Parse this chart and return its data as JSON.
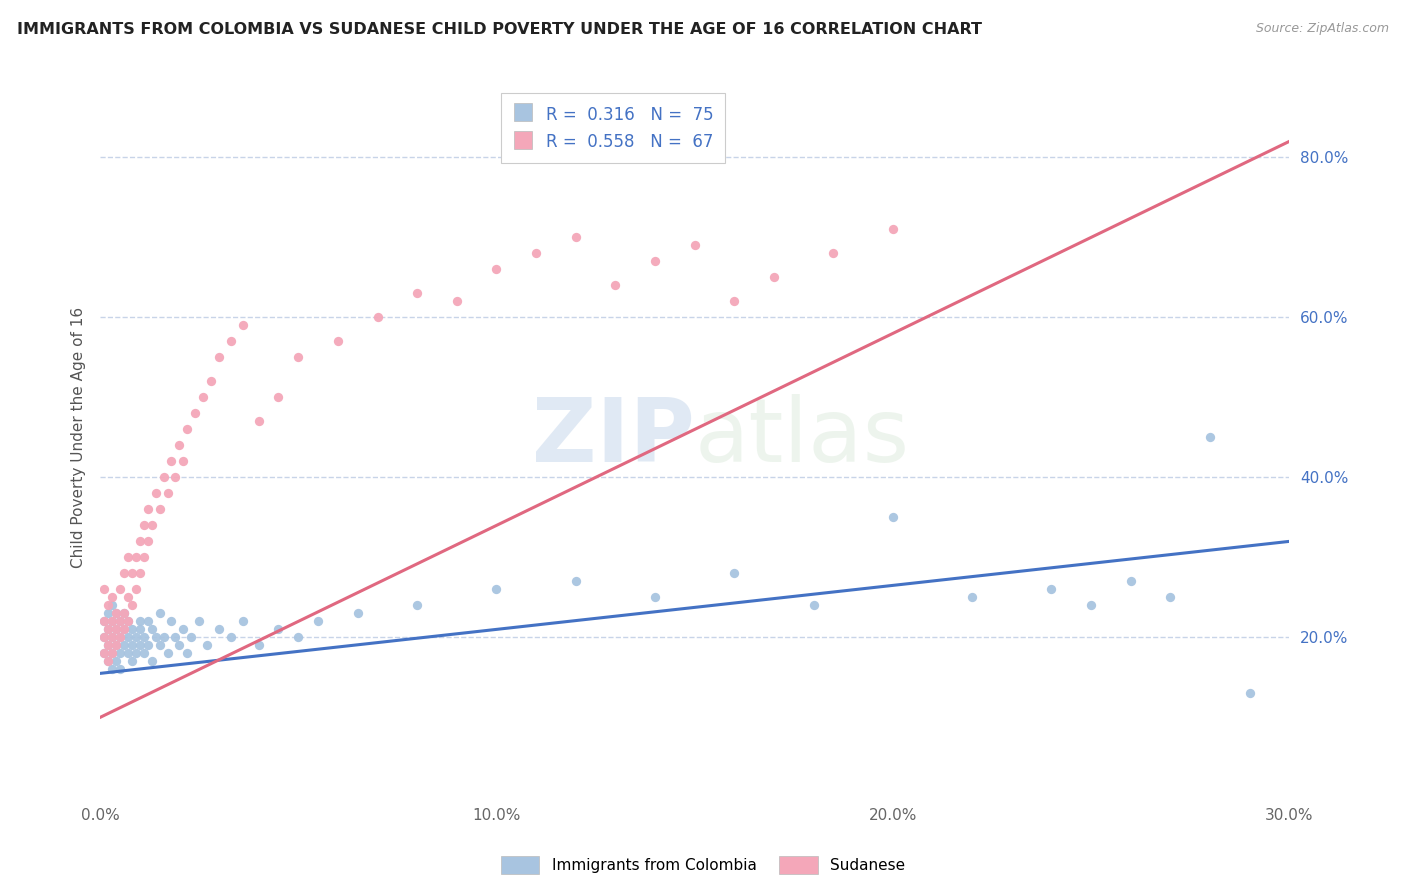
{
  "title": "IMMIGRANTS FROM COLOMBIA VS SUDANESE CHILD POVERTY UNDER THE AGE OF 16 CORRELATION CHART",
  "source": "Source: ZipAtlas.com",
  "xlabel": "",
  "ylabel": "Child Poverty Under the Age of 16",
  "xlim": [
    0.0,
    0.3
  ],
  "ylim": [
    0.0,
    0.9
  ],
  "xtick_labels": [
    "0.0%",
    "10.0%",
    "20.0%",
    "30.0%"
  ],
  "xtick_values": [
    0.0,
    0.1,
    0.2,
    0.3
  ],
  "ytick_labels": [
    "20.0%",
    "40.0%",
    "60.0%",
    "80.0%"
  ],
  "ytick_values": [
    0.2,
    0.4,
    0.6,
    0.8
  ],
  "colombia_color": "#a8c4e0",
  "sudanese_color": "#f4a7b9",
  "colombia_line_color": "#4472c4",
  "sudanese_line_color": "#e06880",
  "R_colombia": 0.316,
  "N_colombia": 75,
  "R_sudanese": 0.558,
  "N_sudanese": 67,
  "legend_label_colombia": "Immigrants from Colombia",
  "legend_label_sudanese": "Sudanese",
  "watermark_zip": "ZIP",
  "watermark_atlas": "atlas",
  "background_color": "#ffffff",
  "grid_color": "#c8d4e8",
  "colombia_scatter_x": [
    0.001,
    0.001,
    0.001,
    0.002,
    0.002,
    0.002,
    0.002,
    0.003,
    0.003,
    0.003,
    0.003,
    0.003,
    0.004,
    0.004,
    0.004,
    0.004,
    0.005,
    0.005,
    0.005,
    0.005,
    0.006,
    0.006,
    0.006,
    0.007,
    0.007,
    0.007,
    0.008,
    0.008,
    0.008,
    0.009,
    0.009,
    0.01,
    0.01,
    0.01,
    0.011,
    0.011,
    0.012,
    0.012,
    0.013,
    0.013,
    0.014,
    0.015,
    0.015,
    0.016,
    0.017,
    0.018,
    0.019,
    0.02,
    0.021,
    0.022,
    0.023,
    0.025,
    0.027,
    0.03,
    0.033,
    0.036,
    0.04,
    0.045,
    0.05,
    0.055,
    0.065,
    0.08,
    0.1,
    0.12,
    0.14,
    0.16,
    0.18,
    0.2,
    0.22,
    0.24,
    0.25,
    0.26,
    0.27,
    0.28,
    0.29
  ],
  "colombia_scatter_y": [
    0.2,
    0.18,
    0.22,
    0.19,
    0.21,
    0.17,
    0.23,
    0.2,
    0.18,
    0.22,
    0.16,
    0.24,
    0.19,
    0.21,
    0.17,
    0.23,
    0.2,
    0.18,
    0.22,
    0.16,
    0.21,
    0.19,
    0.23,
    0.2,
    0.18,
    0.22,
    0.19,
    0.21,
    0.17,
    0.2,
    0.18,
    0.22,
    0.19,
    0.21,
    0.2,
    0.18,
    0.22,
    0.19,
    0.21,
    0.17,
    0.2,
    0.19,
    0.23,
    0.2,
    0.18,
    0.22,
    0.2,
    0.19,
    0.21,
    0.18,
    0.2,
    0.22,
    0.19,
    0.21,
    0.2,
    0.22,
    0.19,
    0.21,
    0.2,
    0.22,
    0.23,
    0.24,
    0.26,
    0.27,
    0.25,
    0.28,
    0.24,
    0.35,
    0.25,
    0.26,
    0.24,
    0.27,
    0.25,
    0.45,
    0.13
  ],
  "sudanese_scatter_x": [
    0.001,
    0.001,
    0.001,
    0.001,
    0.002,
    0.002,
    0.002,
    0.002,
    0.003,
    0.003,
    0.003,
    0.003,
    0.004,
    0.004,
    0.004,
    0.005,
    0.005,
    0.005,
    0.006,
    0.006,
    0.006,
    0.007,
    0.007,
    0.007,
    0.008,
    0.008,
    0.009,
    0.009,
    0.01,
    0.01,
    0.011,
    0.011,
    0.012,
    0.012,
    0.013,
    0.014,
    0.015,
    0.016,
    0.017,
    0.018,
    0.019,
    0.02,
    0.021,
    0.022,
    0.024,
    0.026,
    0.028,
    0.03,
    0.033,
    0.036,
    0.04,
    0.045,
    0.05,
    0.06,
    0.07,
    0.08,
    0.09,
    0.1,
    0.11,
    0.12,
    0.13,
    0.14,
    0.15,
    0.16,
    0.17,
    0.185,
    0.2
  ],
  "sudanese_scatter_y": [
    0.2,
    0.22,
    0.18,
    0.26,
    0.19,
    0.21,
    0.24,
    0.17,
    0.22,
    0.2,
    0.25,
    0.18,
    0.21,
    0.23,
    0.19,
    0.22,
    0.2,
    0.26,
    0.23,
    0.21,
    0.28,
    0.25,
    0.22,
    0.3,
    0.24,
    0.28,
    0.26,
    0.3,
    0.28,
    0.32,
    0.3,
    0.34,
    0.32,
    0.36,
    0.34,
    0.38,
    0.36,
    0.4,
    0.38,
    0.42,
    0.4,
    0.44,
    0.42,
    0.46,
    0.48,
    0.5,
    0.52,
    0.55,
    0.57,
    0.59,
    0.47,
    0.5,
    0.55,
    0.57,
    0.6,
    0.63,
    0.62,
    0.66,
    0.68,
    0.7,
    0.64,
    0.67,
    0.69,
    0.62,
    0.65,
    0.68,
    0.71
  ],
  "colombia_line_x": [
    0.0,
    0.3
  ],
  "colombia_line_y": [
    0.155,
    0.32
  ],
  "sudanese_line_x": [
    0.0,
    0.3
  ],
  "sudanese_line_y": [
    0.1,
    0.82
  ]
}
